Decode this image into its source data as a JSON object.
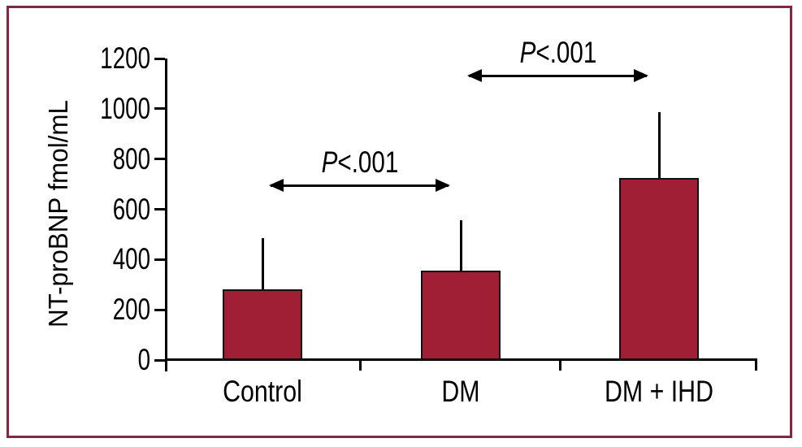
{
  "figure": {
    "border_color": "#7c2b42",
    "background_color": "#ffffff"
  },
  "chart_data": {
    "type": "bar",
    "title": "",
    "xlabel": "",
    "ylabel": "NT-proBNP fmol/mL",
    "categories": [
      "Control",
      "DM",
      "DM + IHD"
    ],
    "values": [
      280,
      355,
      725
    ],
    "error_bar_tops": [
      485,
      555,
      985
    ],
    "ylim": [
      0,
      1200
    ],
    "yticks": [
      0,
      200,
      400,
      600,
      800,
      1000,
      1200
    ],
    "grid": false,
    "legend": null,
    "bar_color": "#a01f35",
    "bar_edge_color": "#111111",
    "annotations": [
      {
        "label": "P<.001",
        "from": "Control",
        "to": "DM",
        "y_value": 695
      },
      {
        "label": "P<.001",
        "from": "DM",
        "to": "DM + IHD",
        "y_value": 1132
      }
    ]
  }
}
